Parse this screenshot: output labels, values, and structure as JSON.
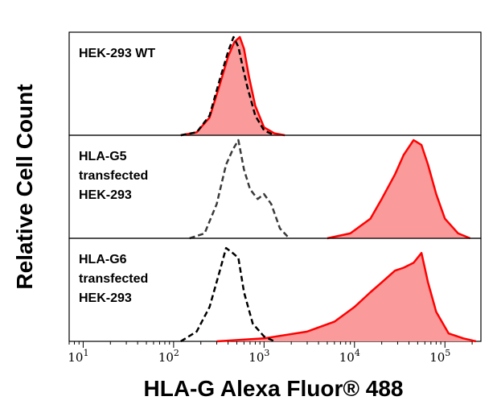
{
  "chart_data": {
    "type": "area",
    "title": "",
    "xlabel": "HLA-G Alexa Fluor® 488",
    "ylabel": "Relative Cell Count",
    "x_scale": "log",
    "xlim": [
      7,
      250000
    ],
    "x_ticks": [
      {
        "value": 10,
        "base": "10",
        "exp": "1"
      },
      {
        "value": 100,
        "base": "10",
        "exp": "2"
      },
      {
        "value": 1000,
        "base": "10",
        "exp": "3"
      },
      {
        "value": 10000,
        "base": "10",
        "exp": "4"
      },
      {
        "value": 100000,
        "base": "10",
        "exp": "5"
      }
    ],
    "legend": "none",
    "grid": false,
    "panels": [
      {
        "label_lines": [
          "HEK-293 WT"
        ],
        "series": [
          {
            "style": "dashed",
            "color": "#000000",
            "fill": "none",
            "x": [
              120,
              180,
              250,
              320,
              400,
              460,
              520,
              580,
              650,
              800,
              1000,
              1300
            ],
            "y": [
              0,
              0.03,
              0.2,
              0.55,
              0.85,
              1.0,
              0.9,
              0.7,
              0.5,
              0.2,
              0.05,
              0
            ]
          },
          {
            "style": "solid",
            "color": "#ff0000",
            "fill": "#fb9a9a",
            "x": [
              120,
              180,
              250,
              320,
              400,
              470,
              540,
              600,
              680,
              800,
              1000,
              1300,
              1700
            ],
            "y": [
              0,
              0.03,
              0.18,
              0.5,
              0.8,
              0.95,
              1.0,
              0.88,
              0.6,
              0.3,
              0.08,
              0.02,
              0
            ]
          }
        ]
      },
      {
        "label_lines": [
          "HLA-G5",
          "transfected",
          "HEK-293"
        ],
        "series": [
          {
            "style": "dashed",
            "color": "#3a3a3a",
            "fill": "none",
            "x": [
              150,
              220,
              300,
              380,
              450,
              520,
              600,
              700,
              850,
              1000,
              1200,
              1500,
              1900
            ],
            "y": [
              0,
              0.05,
              0.35,
              0.75,
              0.9,
              1.0,
              0.7,
              0.5,
              0.4,
              0.45,
              0.35,
              0.1,
              0
            ]
          },
          {
            "style": "solid",
            "color": "#ff0000",
            "fill": "#fb9a9a",
            "x": [
              5000,
              9000,
              15000,
              20000,
              28000,
              35000,
              45000,
              55000,
              65000,
              80000,
              100000,
              140000,
              190000
            ],
            "y": [
              0,
              0.05,
              0.2,
              0.4,
              0.65,
              0.85,
              1.0,
              0.95,
              0.75,
              0.45,
              0.2,
              0.05,
              0
            ]
          }
        ]
      },
      {
        "label_lines": [
          "HLA-G6",
          "transfected",
          "HEK-293"
        ],
        "series": [
          {
            "style": "dashed",
            "color": "#000000",
            "fill": "none",
            "x": [
              120,
              180,
              250,
              320,
              380,
              450,
              520,
              600,
              750,
              1000,
              1300
            ],
            "y": [
              0,
              0.1,
              0.35,
              0.7,
              0.95,
              0.9,
              0.85,
              0.5,
              0.18,
              0.05,
              0
            ]
          },
          {
            "style": "solid",
            "color": "#ff0000",
            "fill": "#fb9a9a",
            "x": [
              300,
              1000,
              3000,
              6000,
              10000,
              15000,
              20000,
              28000,
              35000,
              45000,
              55000,
              65000,
              80000,
              110000,
              160000,
              220000
            ],
            "y": [
              0,
              0.03,
              0.1,
              0.2,
              0.35,
              0.5,
              0.6,
              0.72,
              0.75,
              0.8,
              0.9,
              0.6,
              0.3,
              0.08,
              0.03,
              0
            ]
          }
        ]
      }
    ]
  }
}
